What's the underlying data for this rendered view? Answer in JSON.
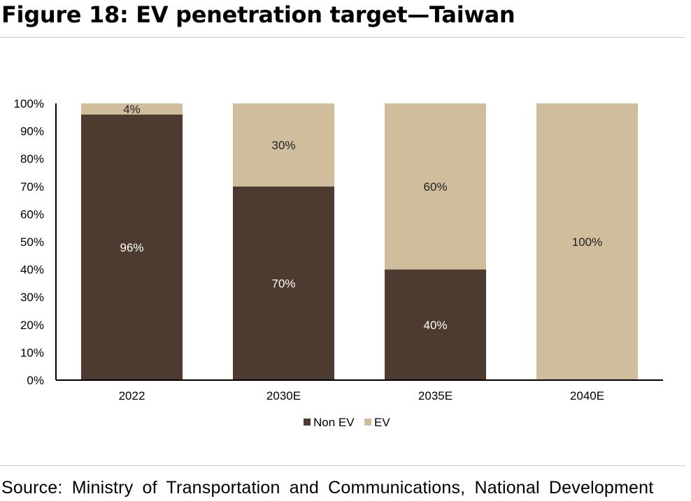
{
  "figure": {
    "title": "Figure 18: EV penetration target—Taiwan",
    "source": "Source: Ministry of Transportation and Communications, National Development"
  },
  "colors": {
    "non_ev": "#4c3b2e",
    "ev": "#cfbd9b",
    "axis": "#000000",
    "dark_label": "#ffffff",
    "light_label": "#222222"
  },
  "chart_data": {
    "type": "bar",
    "stacked": true,
    "categories": [
      "2022",
      "2030E",
      "2035E",
      "2040E"
    ],
    "series": [
      {
        "name": "Non EV",
        "values": [
          96,
          70,
          40,
          0
        ],
        "labels": [
          "96%",
          "70%",
          "40%",
          ""
        ]
      },
      {
        "name": "EV",
        "values": [
          4,
          30,
          60,
          100
        ],
        "labels": [
          "4%",
          "30%",
          "60%",
          "100%"
        ]
      }
    ],
    "ylim": [
      0,
      100
    ],
    "yticks": [
      0,
      10,
      20,
      30,
      40,
      50,
      60,
      70,
      80,
      90,
      100
    ],
    "ytick_labels": [
      "0%",
      "10%",
      "20%",
      "30%",
      "40%",
      "50%",
      "60%",
      "70%",
      "80%",
      "90%",
      "100%"
    ],
    "legend_position": "bottom-center",
    "grid": false,
    "xlabel": "",
    "ylabel": ""
  }
}
